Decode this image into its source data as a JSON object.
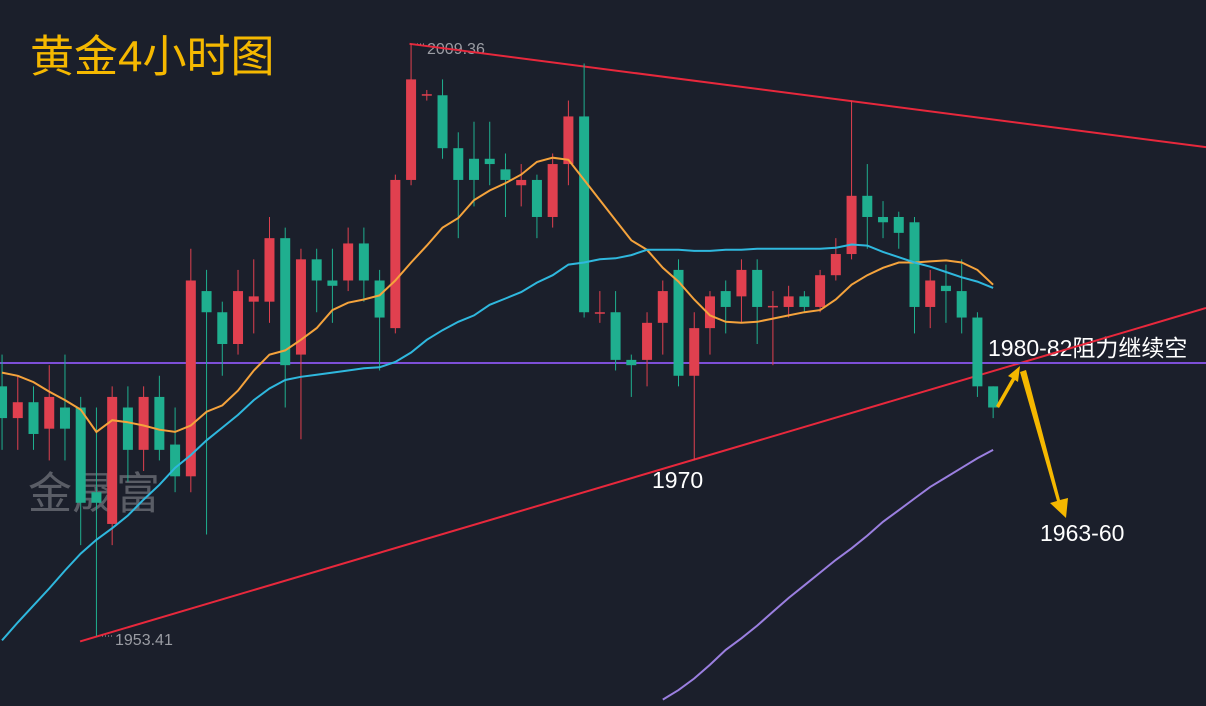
{
  "chart_data": {
    "type": "candlestick",
    "title": "黄金4小时图",
    "watermark": "金晟富",
    "up_color": "#e0404f",
    "down_color": "#1faf8f",
    "xlim": [
      -0.13,
      76.53
    ],
    "ylim": [
      1946.8,
      2013.5
    ],
    "candles": {
      "open": [
        1977,
        1974,
        1975.5,
        1973,
        1975,
        1975,
        1967,
        1964,
        1975,
        1971,
        1976,
        1971.5,
        1968.5,
        1986,
        1984,
        1981,
        1985,
        1985,
        1991,
        1980,
        1989,
        1987,
        1987,
        1990.5,
        1987,
        1982.5,
        1996.5,
        2004.5,
        2004.5,
        1999.5,
        1998.5,
        1998.5,
        1997.5,
        1996,
        1996.5,
        1993,
        1998,
        2002.5,
        1984,
        1984,
        1979.5,
        1979.5,
        1983,
        1988,
        1978,
        1982.5,
        1986,
        1985.5,
        1988,
        1984.5,
        1984.5,
        1985.5,
        1984.5,
        1987.5,
        1989.5,
        1995,
        1993,
        1993,
        1992.5,
        1984.5,
        1986.5,
        1986,
        1983.5,
        1977
      ],
      "high": [
        1980,
        1978,
        1977,
        1979,
        1980,
        1976,
        1975,
        1977,
        1977,
        1977,
        1978,
        1975,
        1990,
        1988,
        1985,
        1988,
        1989,
        1993,
        1992,
        1990,
        1990,
        1990,
        1992,
        1992,
        1988,
        1997,
        2009.36,
        2005,
        2006,
        2001,
        2002,
        2002,
        1999,
        1998,
        1997,
        1999,
        2004,
        2007.5,
        1986,
        1986,
        1980,
        1984,
        1987,
        1989,
        1984,
        1986,
        1987,
        1989,
        1989,
        1986,
        1986.5,
        1986,
        1988,
        1991,
        2004,
        1998,
        1994.5,
        1993.5,
        1993,
        1988,
        1988.5,
        1989,
        1984,
        1977
      ],
      "low": [
        1971,
        1971,
        1971,
        1970,
        1970,
        1962,
        1953.41,
        1962,
        1968,
        1969,
        1970,
        1967,
        1967,
        1963,
        1978,
        1980,
        1982,
        1983,
        1975,
        1972,
        1984,
        1983,
        1986,
        1985,
        1978.5,
        1982,
        1996,
        2004,
        1998.5,
        1991,
        1994,
        1996,
        1993,
        1994,
        1991,
        1992,
        1996,
        1983.5,
        1983,
        1978.5,
        1976,
        1977,
        1980,
        1977,
        1970,
        1980,
        1982,
        1983,
        1981,
        1979,
        1983.5,
        1984,
        1984,
        1987,
        1989,
        1990,
        1991,
        1990,
        1982,
        1982.5,
        1983,
        1982,
        1976,
        1974
      ],
      "close": [
        1974,
        1975.5,
        1972.5,
        1976,
        1973,
        1966,
        1966,
        1976,
        1971,
        1976,
        1971,
        1968.5,
        1987,
        1984,
        1981,
        1986,
        1985.5,
        1991,
        1979,
        1989,
        1987,
        1986.5,
        1990.5,
        1987,
        1983.5,
        1996.5,
        2006,
        2004.6,
        1999.5,
        1996.5,
        1996.5,
        1998,
        1996.5,
        1996.5,
        1993,
        1998,
        2002.5,
        1984,
        1984,
        1979.5,
        1979,
        1983,
        1986,
        1978,
        1982.5,
        1985.5,
        1984.5,
        1988,
        1984.5,
        1984.6,
        1985.5,
        1984.5,
        1987.5,
        1989.5,
        1995,
        1993,
        1992.5,
        1991.5,
        1984.5,
        1987,
        1986,
        1983.5,
        1977,
        1975
      ]
    },
    "series": [
      {
        "color": "#f5a33c",
        "values": [
          1978.3,
          1978.0,
          1977.4,
          1976.5,
          1975.7,
          1974.8,
          1972.7,
          1973.8,
          1973.6,
          1973.3,
          1972.9,
          1972.7,
          1973.3,
          1974.6,
          1975.2,
          1976.6,
          1978.5,
          1980.0,
          1980.4,
          1981.4,
          1982.5,
          1984.2,
          1984.9,
          1985.2,
          1985.6,
          1987.0,
          1988.7,
          1990.3,
          1992.0,
          1992.9,
          1994.6,
          1995.5,
          1996.2,
          1997.0,
          1998.2,
          1998.6,
          1998.4,
          1996.5,
          1994.6,
          1992.7,
          1990.8,
          1989.9,
          1988.2,
          1986.9,
          1985.2,
          1983.7,
          1983.1,
          1983.0,
          1983.1,
          1983.4,
          1983.7,
          1984.0,
          1984.2,
          1985.2,
          1986.6,
          1987.5,
          1988.2,
          1988.7,
          1988.7,
          1988.8,
          1988.9,
          1988.7,
          1988.0,
          1986.6
        ]
      },
      {
        "color": "#2fb8de",
        "values": [
          1953.0,
          1954.7,
          1956.3,
          1957.9,
          1959.6,
          1961.2,
          1962.5,
          1963.6,
          1964.8,
          1966.3,
          1967.7,
          1969.3,
          1970.5,
          1971.9,
          1973.1,
          1974.3,
          1975.7,
          1976.8,
          1977.6,
          1977.9,
          1978.1,
          1978.3,
          1978.5,
          1978.7,
          1978.8,
          1979.3,
          1980.2,
          1981.4,
          1982.3,
          1983.1,
          1983.7,
          1984.7,
          1985.3,
          1985.9,
          1986.8,
          1987.5,
          1988.5,
          1988.7,
          1989.0,
          1989.1,
          1989.4,
          1989.9,
          1989.9,
          1989.9,
          1989.8,
          1989.8,
          1989.9,
          1989.9,
          1990.0,
          1990.0,
          1990.0,
          1990.0,
          1990.0,
          1990.1,
          1990.4,
          1990.3,
          1989.7,
          1989.2,
          1988.7,
          1988.3,
          1987.8,
          1987.3,
          1986.9,
          1986.3
        ]
      },
      {
        "color": "#9b7fe0",
        "values": [
          null,
          null,
          null,
          null,
          null,
          null,
          null,
          null,
          null,
          null,
          null,
          null,
          null,
          null,
          null,
          null,
          null,
          null,
          null,
          null,
          null,
          null,
          null,
          null,
          null,
          null,
          null,
          null,
          null,
          null,
          null,
          null,
          null,
          null,
          null,
          null,
          null,
          null,
          null,
          null,
          null,
          null,
          1947.4,
          1948.3,
          1949.4,
          1950.7,
          1952.1,
          1953.2,
          1954.4,
          1955.7,
          1957.0,
          1958.2,
          1959.4,
          1960.6,
          1961.7,
          1962.9,
          1964.2,
          1965.3,
          1966.4,
          1967.5,
          1968.4,
          1969.3,
          1970.2,
          1971.0
        ]
      }
    ],
    "trend_lines": [
      {
        "color": "#e8283c",
        "x": [
          25.9,
          76.53
        ],
        "y": [
          2009.36,
          1999.6
        ]
      },
      {
        "color": "#e8283c",
        "x": [
          4.96,
          76.53
        ],
        "y": [
          1952.9,
          1984.4
        ]
      },
      {
        "color": "#7d4fd8",
        "x": [
          -0.13,
          76.53
        ],
        "y": [
          1979.2,
          1979.2
        ]
      }
    ],
    "annotations": [
      {
        "text": "2009.36"
      },
      {
        "text": "1953.41"
      },
      {
        "text": "1970"
      },
      {
        "text": "1980-82阻力继续空"
      },
      {
        "text": "1963-60"
      }
    ]
  }
}
